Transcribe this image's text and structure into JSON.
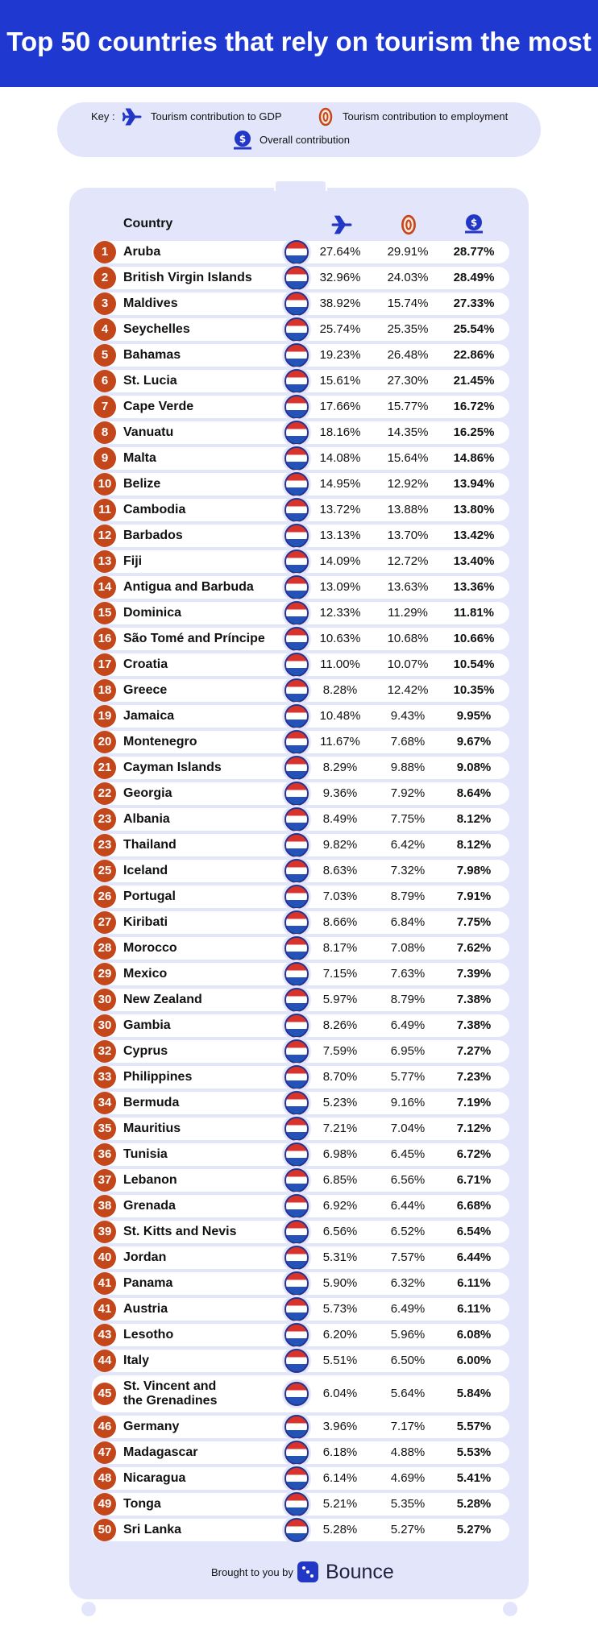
{
  "header": {
    "title": "Top 50 countries that rely on tourism the most"
  },
  "key": {
    "label": "Key :",
    "gdp": "Tourism contribution to GDP",
    "employment": "Tourism contribution to employment",
    "overall": "Overall contribution"
  },
  "table": {
    "country_header": "Country",
    "rows": [
      [
        1,
        "Aruba",
        "27.64%",
        "29.91%",
        "28.77%"
      ],
      [
        2,
        "British Virgin Islands",
        "32.96%",
        "24.03%",
        "28.49%"
      ],
      [
        3,
        "Maldives",
        "38.92%",
        "15.74%",
        "27.33%"
      ],
      [
        4,
        "Seychelles",
        "25.74%",
        "25.35%",
        "25.54%"
      ],
      [
        5,
        "Bahamas",
        "19.23%",
        "26.48%",
        "22.86%"
      ],
      [
        6,
        "St. Lucia",
        "15.61%",
        "27.30%",
        "21.45%"
      ],
      [
        7,
        "Cape Verde",
        "17.66%",
        "15.77%",
        "16.72%"
      ],
      [
        8,
        "Vanuatu",
        "18.16%",
        "14.35%",
        "16.25%"
      ],
      [
        9,
        "Malta",
        "14.08%",
        "15.64%",
        "14.86%"
      ],
      [
        10,
        "Belize",
        "14.95%",
        "12.92%",
        "13.94%"
      ],
      [
        11,
        "Cambodia",
        "13.72%",
        "13.88%",
        "13.80%"
      ],
      [
        12,
        "Barbados",
        "13.13%",
        "13.70%",
        "13.42%"
      ],
      [
        13,
        "Fiji",
        "14.09%",
        "12.72%",
        "13.40%"
      ],
      [
        14,
        "Antigua and Barbuda",
        "13.09%",
        "13.63%",
        "13.36%"
      ],
      [
        15,
        "Dominica",
        "12.33%",
        "11.29%",
        "11.81%"
      ],
      [
        16,
        "São Tomé and Príncipe",
        "10.63%",
        "10.68%",
        "10.66%"
      ],
      [
        17,
        "Croatia",
        "11.00%",
        "10.07%",
        "10.54%"
      ],
      [
        18,
        "Greece",
        "8.28%",
        "12.42%",
        "10.35%"
      ],
      [
        19,
        "Jamaica",
        "10.48%",
        "9.43%",
        "9.95%"
      ],
      [
        20,
        "Montenegro",
        "11.67%",
        "7.68%",
        "9.67%"
      ],
      [
        21,
        "Cayman Islands",
        "8.29%",
        "9.88%",
        "9.08%"
      ],
      [
        22,
        "Georgia",
        "9.36%",
        "7.92%",
        "8.64%"
      ],
      [
        23,
        "Albania",
        "8.49%",
        "7.75%",
        "8.12%"
      ],
      [
        23,
        "Thailand",
        "9.82%",
        "6.42%",
        "8.12%"
      ],
      [
        25,
        "Iceland",
        "8.63%",
        "7.32%",
        "7.98%"
      ],
      [
        26,
        "Portugal",
        "7.03%",
        "8.79%",
        "7.91%"
      ],
      [
        27,
        "Kiribati",
        "8.66%",
        "6.84%",
        "7.75%"
      ],
      [
        28,
        "Morocco",
        "8.17%",
        "7.08%",
        "7.62%"
      ],
      [
        29,
        "Mexico",
        "7.15%",
        "7.63%",
        "7.39%"
      ],
      [
        30,
        "New Zealand",
        "5.97%",
        "8.79%",
        "7.38%"
      ],
      [
        30,
        "Gambia",
        "8.26%",
        "6.49%",
        "7.38%"
      ],
      [
        32,
        "Cyprus",
        "7.59%",
        "6.95%",
        "7.27%"
      ],
      [
        33,
        "Philippines",
        "8.70%",
        "5.77%",
        "7.23%"
      ],
      [
        34,
        "Bermuda",
        "5.23%",
        "9.16%",
        "7.19%"
      ],
      [
        35,
        "Mauritius",
        "7.21%",
        "7.04%",
        "7.12%"
      ],
      [
        36,
        "Tunisia",
        "6.98%",
        "6.45%",
        "6.72%"
      ],
      [
        37,
        "Lebanon",
        "6.85%",
        "6.56%",
        "6.71%"
      ],
      [
        38,
        "Grenada",
        "6.92%",
        "6.44%",
        "6.68%"
      ],
      [
        39,
        "St. Kitts and Nevis",
        "6.56%",
        "6.52%",
        "6.54%"
      ],
      [
        40,
        "Jordan",
        "5.31%",
        "7.57%",
        "6.44%"
      ],
      [
        41,
        "Panama",
        "5.90%",
        "6.32%",
        "6.11%"
      ],
      [
        41,
        "Austria",
        "5.73%",
        "6.49%",
        "6.11%"
      ],
      [
        43,
        "Lesotho",
        "6.20%",
        "5.96%",
        "6.08%"
      ],
      [
        44,
        "Italy",
        "5.51%",
        "6.50%",
        "6.00%"
      ],
      [
        45,
        "St. Vincent and\nthe Grenadines",
        "6.04%",
        "5.64%",
        "5.84%"
      ],
      [
        46,
        "Germany",
        "3.96%",
        "7.17%",
        "5.57%"
      ],
      [
        47,
        "Madagascar",
        "6.18%",
        "4.88%",
        "5.53%"
      ],
      [
        48,
        "Nicaragua",
        "6.14%",
        "4.69%",
        "5.41%"
      ],
      [
        49,
        "Tonga",
        "5.21%",
        "5.35%",
        "5.28%"
      ],
      [
        50,
        "Sri Lanka",
        "5.28%",
        "5.27%",
        "5.27%"
      ]
    ]
  },
  "footer": {
    "text": "Brought to you by",
    "brand": "Bounce"
  }
}
